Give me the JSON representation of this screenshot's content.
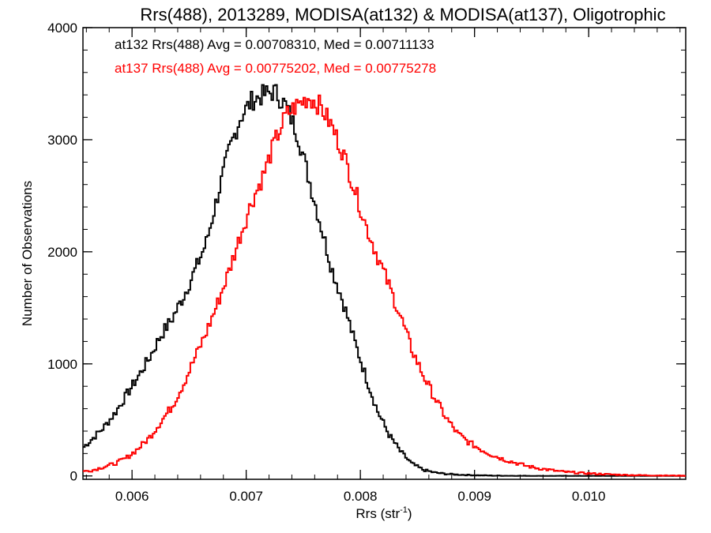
{
  "chart_data": {
    "type": "line",
    "title": "Rrs(488), 2013289, MODISA(at132) & MODISA(at137), Oligotrophic",
    "xlabel": "Rrs (str",
    "xlabel_sup": "-1",
    "xlabel_close": ")",
    "ylabel": "Number of Observations",
    "xlim": [
      0.00557,
      0.01085
    ],
    "ylim": [
      -30,
      4000
    ],
    "x_ticks": [
      {
        "value": 0.006,
        "label": "0.006"
      },
      {
        "value": 0.007,
        "label": "0.007"
      },
      {
        "value": 0.008,
        "label": "0.008"
      },
      {
        "value": 0.009,
        "label": "0.009"
      },
      {
        "value": 0.01,
        "label": "0.010"
      }
    ],
    "y_ticks": [
      {
        "value": 0,
        "label": "0"
      },
      {
        "value": 1000,
        "label": "1000"
      },
      {
        "value": 2000,
        "label": "2000"
      },
      {
        "value": 3000,
        "label": "3000"
      },
      {
        "value": 4000,
        "label": "4000"
      }
    ],
    "grid": false,
    "legend": "top-left",
    "annotations": [
      {
        "text": "at132 Rrs(488) Avg = 0.00708310, Med = 0.00711133",
        "color": "#000000"
      },
      {
        "text": "at137 Rrs(488) Avg = 0.00775202, Med = 0.00775278",
        "color": "#ff0000"
      }
    ],
    "series": [
      {
        "color": "#000000",
        "x": [
          0.00557,
          0.00565,
          0.00575,
          0.00585,
          0.00595,
          0.00605,
          0.00615,
          0.00625,
          0.00635,
          0.00645,
          0.00655,
          0.00665,
          0.00675,
          0.00685,
          0.00695,
          0.00705,
          0.00715,
          0.00725,
          0.00735,
          0.00745,
          0.00755,
          0.00765,
          0.00775,
          0.00785,
          0.00795,
          0.00805,
          0.00815,
          0.00825,
          0.00835,
          0.00845,
          0.00855,
          0.00865,
          0.00875,
          0.00885,
          0.00895,
          0.00905,
          0.00915,
          0.00925,
          0.00935,
          0.00945,
          0.00955,
          0.00965,
          0.00975,
          0.00985,
          0.00995,
          0.01005,
          0.01015,
          0.01025,
          0.01035,
          0.01045,
          0.01055,
          0.01065,
          0.01075,
          0.01085
        ],
        "y": [
          250,
          330,
          430,
          560,
          720,
          880,
          1050,
          1250,
          1400,
          1600,
          1830,
          2080,
          2500,
          2900,
          3200,
          3350,
          3400,
          3430,
          3300,
          3050,
          2650,
          2250,
          1850,
          1550,
          1200,
          880,
          580,
          370,
          220,
          110,
          55,
          30,
          18,
          12,
          8,
          5,
          3,
          2,
          1,
          1,
          0,
          0,
          0,
          0,
          0,
          0,
          0,
          0,
          0,
          0,
          0,
          0,
          0,
          0
        ]
      },
      {
        "color": "#ff0000",
        "x": [
          0.00557,
          0.00565,
          0.00575,
          0.00585,
          0.00595,
          0.00605,
          0.00615,
          0.00625,
          0.00635,
          0.00645,
          0.00655,
          0.00665,
          0.00675,
          0.00685,
          0.00695,
          0.00705,
          0.00715,
          0.00725,
          0.00735,
          0.00745,
          0.00755,
          0.00765,
          0.00775,
          0.00785,
          0.00795,
          0.00805,
          0.00815,
          0.00825,
          0.00835,
          0.00845,
          0.00855,
          0.00865,
          0.00875,
          0.00885,
          0.00895,
          0.00905,
          0.00915,
          0.00925,
          0.00935,
          0.00945,
          0.00955,
          0.00965,
          0.00975,
          0.00985,
          0.00995,
          0.01005,
          0.01015,
          0.01025,
          0.01035,
          0.01045,
          0.01055,
          0.01065,
          0.01075,
          0.01085
        ],
        "y": [
          40,
          50,
          80,
          110,
          160,
          240,
          340,
          480,
          620,
          820,
          1050,
          1280,
          1540,
          1830,
          2150,
          2450,
          2680,
          2980,
          3220,
          3310,
          3380,
          3300,
          3120,
          2880,
          2560,
          2230,
          1960,
          1700,
          1430,
          1130,
          900,
          700,
          520,
          380,
          300,
          240,
          190,
          150,
          120,
          90,
          70,
          55,
          40,
          32,
          25,
          20,
          15,
          11,
          8,
          6,
          5,
          4,
          3,
          2
        ]
      }
    ]
  }
}
